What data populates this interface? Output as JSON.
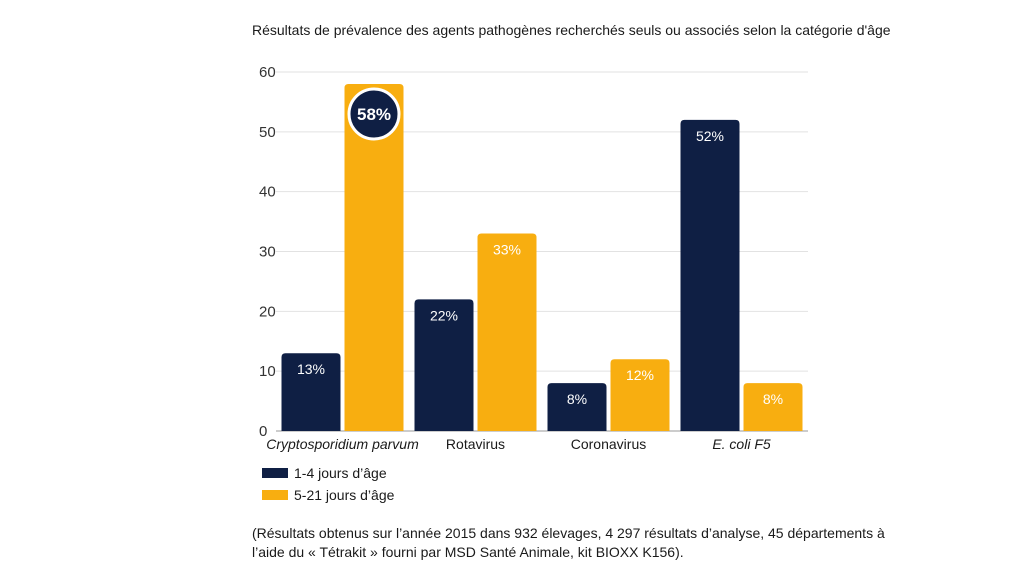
{
  "chart_data": {
    "type": "bar",
    "title": "Résultats de prévalence des agents pathogènes recherchés seuls ou associés selon la catégorie d'âge",
    "categories": [
      "Cryptosporidium parvum",
      "Rotavirus",
      "Coronavirus",
      "E. coli F5"
    ],
    "category_italic": [
      true,
      false,
      false,
      true
    ],
    "series": [
      {
        "name": "1-4 jours d’âge",
        "color": "#0f1f44",
        "values": [
          13,
          22,
          8,
          52
        ],
        "labels": [
          "13%",
          "22%",
          "8%",
          "52%"
        ]
      },
      {
        "name": "5-21 jours d’âge",
        "color": "#f8ae10",
        "values": [
          58,
          33,
          12,
          8
        ],
        "labels": [
          "58%",
          "33%",
          "12%",
          "8%"
        ]
      }
    ],
    "highlight": {
      "series": 1,
      "category": 0,
      "label": "58%",
      "color": "#0f1f44"
    },
    "yticks": [
      "0",
      "10",
      "20",
      "30",
      "40",
      "50",
      "60"
    ],
    "ylim": [
      0,
      60
    ],
    "grid": true,
    "legend_position": "bottom-left"
  },
  "footnote": "(Résultats obtenus sur l’année 2015 dans 932 élevages, 4 297 résultats d’analyse, 45 départements à l’aide du « Tétrakit » fourni par MSD Santé Animale, kit BIOXX K156)."
}
